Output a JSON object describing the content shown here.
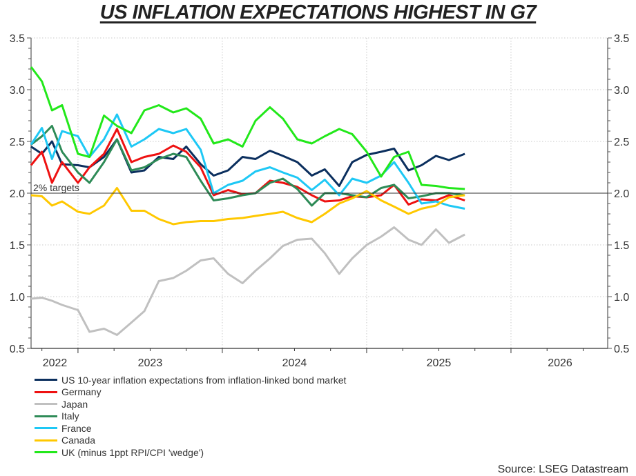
{
  "chart_data": {
    "type": "line",
    "title": "US INFLATION EXPECTATIONS HIGHEST IN G7",
    "xlabel": "",
    "ylabel": "",
    "ylim": [
      0.5,
      3.5
    ],
    "xlim": [
      2022.675,
      2026.67
    ],
    "y_ticks": [
      "0.5",
      "1.0",
      "1.5",
      "2.0",
      "2.5",
      "3.0",
      "3.5"
    ],
    "y_tick_values": [
      0.5,
      1.0,
      1.5,
      2.0,
      2.5,
      3.0,
      3.5
    ],
    "x_year_boundaries": [
      2023,
      2024,
      2025,
      2026
    ],
    "x_tick_labels": [
      {
        "label": "2022",
        "at": 2022.84
      },
      {
        "label": "2023",
        "at": 2023.5
      },
      {
        "label": "2024",
        "at": 2024.5
      },
      {
        "label": "2025",
        "at": 2025.5
      },
      {
        "label": "2026",
        "at": 2026.34
      }
    ],
    "grid": true,
    "reference_line": {
      "value": 2.0,
      "label": "2% targets"
    },
    "x": [
      2022.675,
      2022.75,
      2022.82,
      2022.89,
      2023.0,
      2023.08,
      2023.18,
      2023.27,
      2023.37,
      2023.46,
      2023.56,
      2023.66,
      2023.75,
      2023.85,
      2023.94,
      2024.04,
      2024.14,
      2024.23,
      2024.33,
      2024.42,
      2024.52,
      2024.62,
      2024.71,
      2024.81,
      2024.9,
      2025.0,
      2025.1,
      2025.19,
      2025.29,
      2025.38,
      2025.48,
      2025.57,
      2025.68
    ],
    "series": [
      {
        "name": "US 10-year inflation expectations from inflation-linked bond market",
        "color": "#0b2f5e",
        "values": [
          2.45,
          2.38,
          2.5,
          2.28,
          2.27,
          2.25,
          2.35,
          2.52,
          2.2,
          2.22,
          2.35,
          2.33,
          2.45,
          2.28,
          2.17,
          2.22,
          2.35,
          2.33,
          2.41,
          2.36,
          2.3,
          2.17,
          2.23,
          2.07,
          2.3,
          2.37,
          2.4,
          2.43,
          2.22,
          2.27,
          2.36,
          2.32,
          2.38
        ]
      },
      {
        "name": "Germany",
        "color": "#ee1111",
        "values": [
          2.27,
          2.4,
          2.1,
          2.3,
          2.1,
          2.25,
          2.38,
          2.62,
          2.3,
          2.35,
          2.38,
          2.46,
          2.4,
          2.25,
          1.98,
          2.03,
          1.99,
          2.0,
          2.12,
          2.1,
          2.06,
          1.98,
          1.92,
          1.93,
          1.97,
          1.96,
          1.98,
          2.08,
          1.89,
          1.94,
          1.93,
          1.98,
          1.93
        ]
      },
      {
        "name": "Japan",
        "color": "#c0c0c0",
        "values": [
          0.98,
          0.99,
          0.96,
          0.92,
          0.87,
          0.66,
          0.69,
          0.63,
          0.75,
          0.86,
          1.15,
          1.18,
          1.25,
          1.35,
          1.37,
          1.22,
          1.13,
          1.25,
          1.37,
          1.49,
          1.55,
          1.56,
          1.42,
          1.22,
          1.37,
          1.5,
          1.58,
          1.67,
          1.55,
          1.5,
          1.65,
          1.52,
          1.6
        ]
      },
      {
        "name": "Italy",
        "color": "#2e8b57",
        "values": [
          2.47,
          2.55,
          2.65,
          2.4,
          2.2,
          2.1,
          2.3,
          2.52,
          2.22,
          2.25,
          2.33,
          2.38,
          2.35,
          2.12,
          1.93,
          1.95,
          1.98,
          2.0,
          2.1,
          2.14,
          2.04,
          1.88,
          2.0,
          2.0,
          1.98,
          1.96,
          2.05,
          2.08,
          1.95,
          1.97,
          2.0,
          2.0,
          1.98
        ]
      },
      {
        "name": "France",
        "color": "#1ec8f5",
        "values": [
          2.47,
          2.63,
          2.33,
          2.6,
          2.55,
          2.35,
          2.52,
          2.76,
          2.45,
          2.52,
          2.62,
          2.58,
          2.62,
          2.42,
          2.0,
          2.08,
          2.12,
          2.21,
          2.25,
          2.2,
          2.15,
          2.03,
          2.13,
          1.98,
          2.14,
          2.1,
          2.17,
          2.3,
          2.1,
          1.9,
          1.92,
          1.88,
          1.85
        ]
      },
      {
        "name": "Canada",
        "color": "#ffc800",
        "values": [
          1.98,
          1.97,
          1.88,
          1.92,
          1.82,
          1.8,
          1.88,
          2.05,
          1.83,
          1.83,
          1.75,
          1.7,
          1.72,
          1.73,
          1.73,
          1.75,
          1.76,
          1.78,
          1.8,
          1.82,
          1.76,
          1.72,
          1.8,
          1.9,
          1.95,
          2.02,
          1.93,
          1.87,
          1.8,
          1.85,
          1.88,
          1.96,
          1.98
        ]
      },
      {
        "name": "UK (minus 1ppt RPI/CPI 'wedge')",
        "color": "#22e81a",
        "values": [
          3.22,
          3.08,
          2.8,
          2.85,
          2.38,
          2.35,
          2.75,
          2.65,
          2.58,
          2.8,
          2.85,
          2.78,
          2.82,
          2.72,
          2.48,
          2.52,
          2.45,
          2.7,
          2.83,
          2.72,
          2.52,
          2.48,
          2.55,
          2.62,
          2.57,
          2.4,
          2.16,
          2.35,
          2.4,
          2.08,
          2.07,
          2.05,
          2.04
        ]
      }
    ],
    "legend_position": "bottom-left"
  },
  "source": "Source: LSEG Datastream"
}
